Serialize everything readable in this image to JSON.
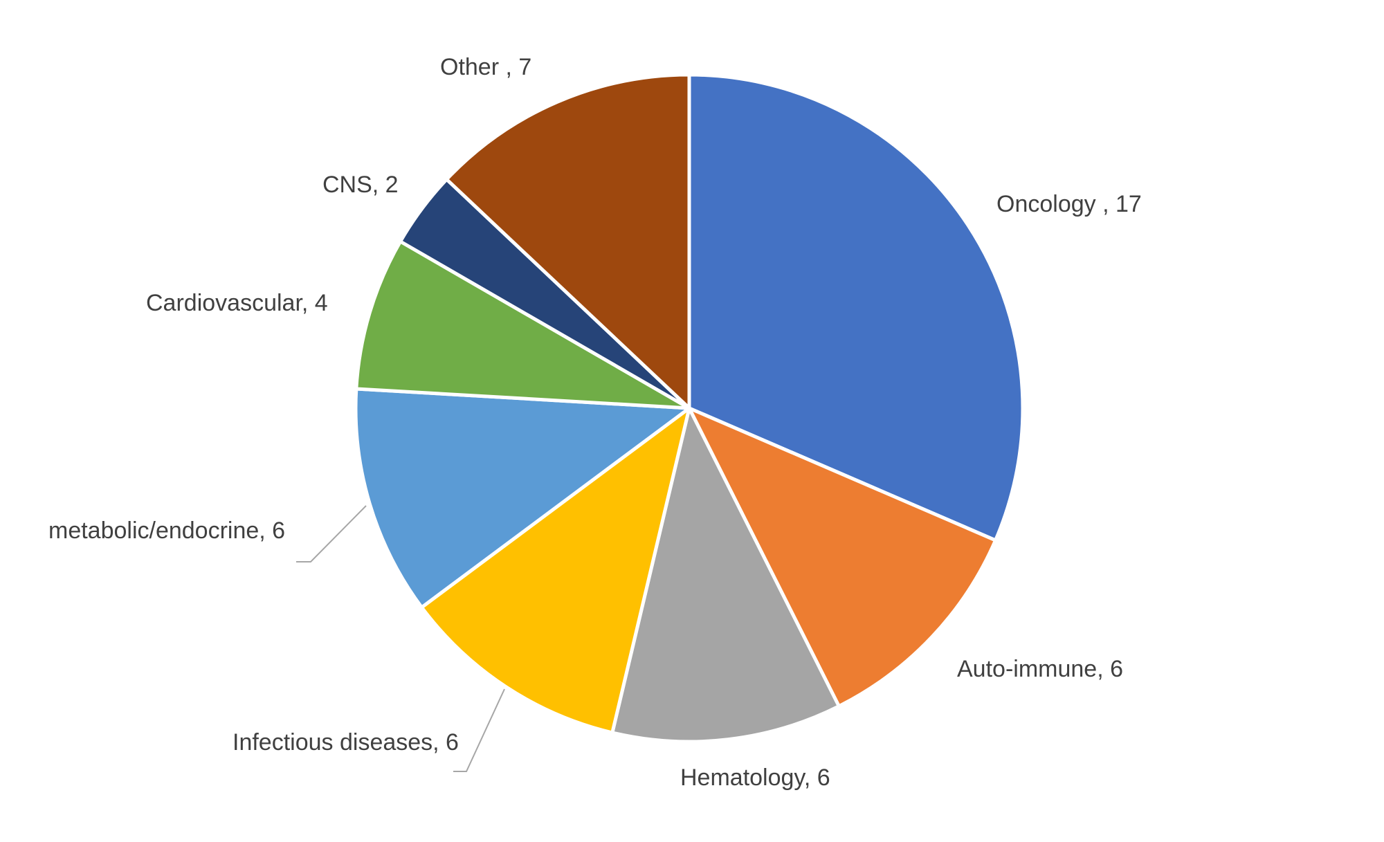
{
  "chart_data": {
    "type": "pie",
    "title": "",
    "slices": [
      {
        "label": "Oncology",
        "value": 17,
        "display": "Oncology , 17",
        "color": "#4472C4"
      },
      {
        "label": "Auto-immune",
        "value": 6,
        "display": "Auto-immune, 6",
        "color": "#ED7D31"
      },
      {
        "label": "Hematology",
        "value": 6,
        "display": "Hematology, 6",
        "color": "#A5A5A5"
      },
      {
        "label": "Infectious diseases",
        "value": 6,
        "display": "Infectious diseases, 6",
        "color": "#FFC000"
      },
      {
        "label": "metabolic/endocrine",
        "value": 6,
        "display": "metabolic/endocrine, 6",
        "color": "#5B9BD5"
      },
      {
        "label": "Cardiovascular",
        "value": 4,
        "display": "Cardiovascular, 4",
        "color": "#70AD47"
      },
      {
        "label": "CNS",
        "value": 2,
        "display": "CNS, 2",
        "color": "#264478"
      },
      {
        "label": "Other",
        "value": 7,
        "display": "Other , 7",
        "color": "#9E480E"
      }
    ],
    "start_angle": "12 o'clock",
    "direction": "clockwise",
    "legend": "none",
    "data_labels": "outside, category and value"
  }
}
